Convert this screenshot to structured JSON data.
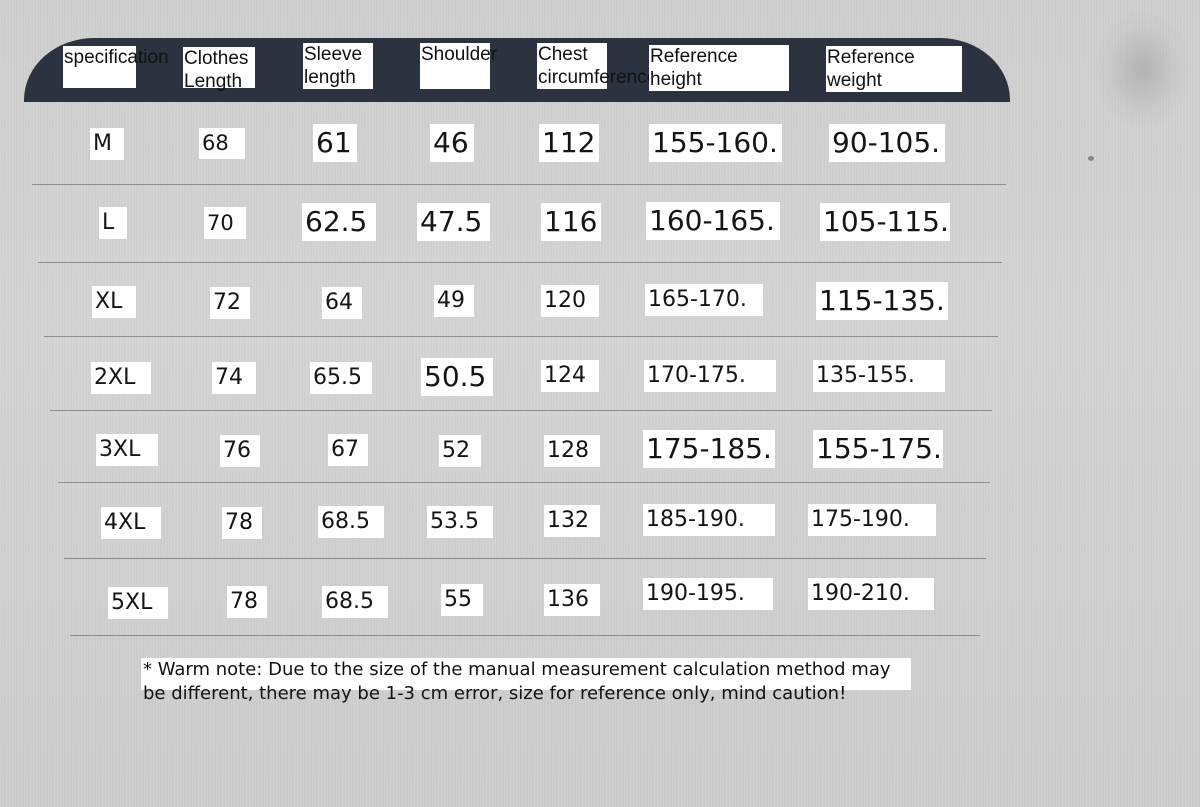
{
  "headers": [
    "specification",
    "Clothes Length",
    "Sleeve length",
    "Shoulder",
    "Chest circumference",
    "Reference height",
    "Reference weight"
  ],
  "rows": [
    {
      "size": "M",
      "length": "68",
      "sleeve": "61",
      "shoulder": "46",
      "chest": "112",
      "height": "155-160.",
      "weight": "90-105."
    },
    {
      "size": "L",
      "length": "70",
      "sleeve": "62.5",
      "shoulder": "47.5",
      "chest": "116",
      "height": "160-165.",
      "weight": "105-115."
    },
    {
      "size": "XL",
      "length": "72",
      "sleeve": "64",
      "shoulder": "49",
      "chest": "120",
      "height": "165-170.",
      "weight": "115-135."
    },
    {
      "size": "2XL",
      "length": "74",
      "sleeve": "65.5",
      "shoulder": "50.5",
      "chest": "124",
      "height": "170-175.",
      "weight": "135-155."
    },
    {
      "size": "3XL",
      "length": "76",
      "sleeve": "67",
      "shoulder": "52",
      "chest": "128",
      "height": "175-185.",
      "weight": "155-175."
    },
    {
      "size": "4XL",
      "length": "78",
      "sleeve": "68.5",
      "shoulder": "53.5",
      "chest": "132",
      "height": "185-190.",
      "weight": "175-190."
    },
    {
      "size": "5XL",
      "length": "78",
      "sleeve": "68.5",
      "shoulder": "55",
      "chest": "136",
      "height": "190-195.",
      "weight": "190-210."
    }
  ],
  "note": "* Warm note: Due to the size of the manual measurement calculation method may be different, there may be 1-3 cm error, size for reference only, mind caution!",
  "colors": {
    "header_bar": "#2b3340",
    "background": "#d0d0d0",
    "cell_bg": "#ffffff",
    "rule": "#8d8d8d"
  }
}
